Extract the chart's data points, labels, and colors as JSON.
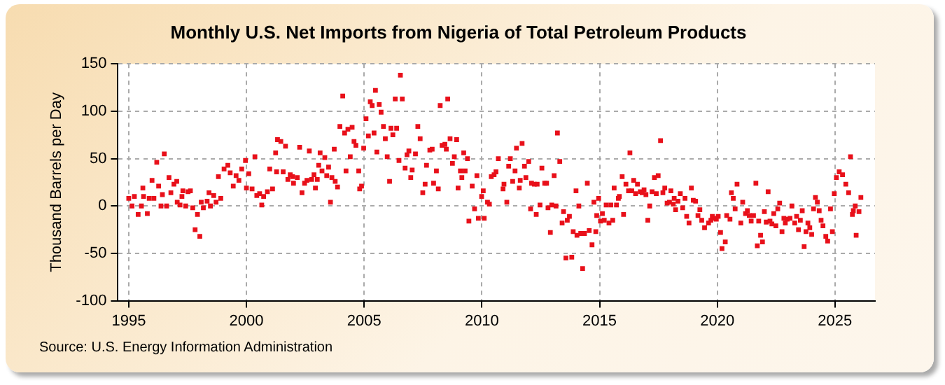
{
  "chart_data": {
    "type": "scatter",
    "title": "Monthly U.S. Net Imports from Nigeria of Total Petroleum Products",
    "ylabel": "Thousand Barrels per Day",
    "annotations": [
      "Source: U.S. Energy Information Administration"
    ],
    "xlim": [
      1994.54,
      2026.7
    ],
    "xticks": [
      1995,
      2000,
      2005,
      2010,
      2015,
      2020,
      2025
    ],
    "ylim": [
      -100,
      150
    ],
    "yticks": [
      -100,
      -50,
      0,
      50,
      100,
      150
    ],
    "grid": true,
    "marker": "square",
    "series": [
      {
        "color": "#e8101a",
        "x": [
          1995.0,
          1995.14,
          1995.24,
          1995.4,
          1995.54,
          1995.6,
          1995.63,
          1995.79,
          1995.87,
          1995.99,
          1996.07,
          1996.19,
          1996.27,
          1996.37,
          1996.43,
          1996.51,
          1996.61,
          1996.71,
          1996.79,
          1996.92,
          1997.04,
          1997.06,
          1997.18,
          1997.26,
          1997.3,
          1997.42,
          1997.52,
          1997.62,
          1997.72,
          1997.82,
          1997.92,
          1998.02,
          1998.08,
          1998.17,
          1998.33,
          1998.41,
          1998.47,
          1998.61,
          1998.71,
          1998.81,
          1998.91,
          1999.05,
          1999.21,
          1999.31,
          1999.44,
          1999.56,
          1999.68,
          1999.8,
          1999.96,
          2000.0,
          2000.1,
          2000.24,
          2000.36,
          2000.44,
          2000.56,
          2000.65,
          2000.73,
          2000.89,
          2000.99,
          2001.11,
          2001.24,
          2001.28,
          2001.32,
          2001.46,
          2001.56,
          2001.66,
          2001.76,
          2001.86,
          2001.96,
          2002.0,
          2002.16,
          2002.26,
          2002.36,
          2002.47,
          2002.57,
          2002.67,
          2002.77,
          2002.87,
          2002.93,
          2003.01,
          2003.07,
          2003.13,
          2003.21,
          2003.33,
          2003.41,
          2003.49,
          2003.57,
          2003.63,
          2003.73,
          2003.77,
          2003.87,
          2003.97,
          2004.09,
          2004.17,
          2004.23,
          2004.31,
          2004.41,
          2004.49,
          2004.57,
          2004.65,
          2004.77,
          2004.81,
          2004.89,
          2004.98,
          2005.08,
          2005.18,
          2005.26,
          2005.34,
          2005.42,
          2005.48,
          2005.54,
          2005.64,
          2005.72,
          2005.82,
          2005.9,
          2005.98,
          2006.08,
          2006.14,
          2006.22,
          2006.32,
          2006.38,
          2006.48,
          2006.54,
          2006.62,
          2006.74,
          2006.82,
          2006.9,
          2006.98,
          2007.04,
          2007.18,
          2007.28,
          2007.38,
          2007.49,
          2007.59,
          2007.65,
          2007.79,
          2007.89,
          2007.95,
          2008.07,
          2008.15,
          2008.23,
          2008.31,
          2008.43,
          2008.49,
          2008.55,
          2008.65,
          2008.75,
          2008.83,
          2008.93,
          2008.99,
          2009.09,
          2009.15,
          2009.23,
          2009.29,
          2009.39,
          2009.45,
          2009.59,
          2009.69,
          2009.79,
          2009.85,
          2009.99,
          2010.06,
          2010.1,
          2010.24,
          2010.32,
          2010.4,
          2010.52,
          2010.6,
          2010.7,
          2010.9,
          2010.94,
          2011.06,
          2011.14,
          2011.21,
          2011.31,
          2011.41,
          2011.47,
          2011.59,
          2011.63,
          2011.71,
          2011.81,
          2011.87,
          2011.99,
          2012.07,
          2012.11,
          2012.23,
          2012.31,
          2012.35,
          2012.47,
          2012.55,
          2012.67,
          2012.75,
          2012.81,
          2012.91,
          2012.97,
          2013.07,
          2013.15,
          2013.21,
          2013.31,
          2013.41,
          2013.47,
          2013.57,
          2013.63,
          2013.72,
          2013.82,
          2013.88,
          2014.0,
          2014.04,
          2014.12,
          2014.2,
          2014.28,
          2014.36,
          2014.48,
          2014.56,
          2014.68,
          2014.76,
          2014.84,
          2014.88,
          2014.96,
          2015.04,
          2015.12,
          2015.2,
          2015.28,
          2015.4,
          2015.48,
          2015.56,
          2015.62,
          2015.72,
          2015.8,
          2015.84,
          2015.96,
          2016.02,
          2016.12,
          2016.23,
          2016.29,
          2016.37,
          2016.45,
          2016.53,
          2016.61,
          2016.73,
          2016.81,
          2016.89,
          2016.97,
          2017.05,
          2017.13,
          2017.23,
          2017.33,
          2017.41,
          2017.49,
          2017.59,
          2017.69,
          2017.77,
          2017.87,
          2017.97,
          2018.03,
          2018.13,
          2018.17,
          2018.23,
          2018.33,
          2018.43,
          2018.53,
          2018.63,
          2018.7,
          2018.8,
          2018.9,
          2018.98,
          2019.08,
          2019.18,
          2019.26,
          2019.34,
          2019.46,
          2019.63,
          2019.73,
          2019.79,
          2019.87,
          2019.96,
          2020.04,
          2020.14,
          2020.2,
          2020.34,
          2020.4,
          2020.54,
          2020.6,
          2020.68,
          2020.76,
          2020.84,
          2021.0,
          2021.08,
          2021.2,
          2021.28,
          2021.36,
          2021.44,
          2021.54,
          2021.64,
          2021.7,
          2021.76,
          2021.84,
          2021.92,
          2022.0,
          2022.08,
          2022.16,
          2022.24,
          2022.32,
          2022.4,
          2022.49,
          2022.57,
          2022.65,
          2022.75,
          2022.83,
          2022.89,
          2022.97,
          2023.09,
          2023.17,
          2023.29,
          2023.37,
          2023.45,
          2023.53,
          2023.61,
          2023.69,
          2023.77,
          2023.85,
          2023.93,
          2024.01,
          2024.09,
          2024.17,
          2024.25,
          2024.33,
          2024.41,
          2024.49,
          2024.61,
          2024.69,
          2024.81,
          2024.89,
          2024.97,
          2025.06,
          2025.18,
          2025.32,
          2025.46,
          2025.58,
          2025.66,
          2025.74,
          2025.78,
          2025.86,
          2025.9,
          2026.02,
          2026.1
        ],
        "values": [
          8,
          0,
          10,
          -9,
          0,
          19,
          10,
          -8,
          8,
          27,
          8,
          46,
          21,
          0,
          12,
          55,
          0,
          30,
          14,
          23,
          26,
          4,
          1,
          10,
          16,
          0,
          15,
          16,
          -2,
          -25,
          -9,
          -32,
          4,
          -2,
          5,
          14,
          0,
          11,
          4,
          31,
          8,
          39,
          43,
          35,
          21,
          32,
          27,
          39,
          48,
          19,
          34,
          18,
          52,
          11,
          13,
          1,
          10,
          15,
          39,
          18,
          56,
          36,
          70,
          68,
          36,
          63,
          28,
          33,
          31,
          24,
          30,
          62,
          14,
          24,
          27,
          58,
          28,
          33,
          19,
          28,
          43,
          56,
          37,
          51,
          32,
          41,
          4,
          30,
          60,
          26,
          20,
          84,
          116,
          77,
          37,
          81,
          52,
          83,
          68,
          64,
          37,
          18,
          21,
          61,
          92,
          74,
          110,
          106,
          77,
          122,
          57,
          107,
          99,
          84,
          71,
          52,
          26,
          82,
          75,
          113,
          82,
          48,
          138,
          113,
          40,
          54,
          58,
          30,
          38,
          55,
          84,
          71,
          14,
          23,
          43,
          59,
          60,
          24,
          37,
          18,
          106,
          64,
          65,
          60,
          113,
          71,
          45,
          52,
          70,
          19,
          37,
          30,
          56,
          37,
          50,
          -16,
          21,
          -3,
          32,
          -13,
          10,
          16,
          -13,
          4,
          2,
          31,
          33,
          36,
          50,
          18,
          23,
          4,
          42,
          50,
          26,
          37,
          61,
          19,
          27,
          66,
          42,
          30,
          47,
          -3,
          24,
          23,
          -9,
          23,
          1,
          40,
          24,
          24,
          -2,
          -28,
          1,
          32,
          0,
          77,
          47,
          -18,
          -6,
          -55,
          -15,
          -11,
          -54,
          -27,
          16,
          -31,
          0,
          -29,
          -66,
          -29,
          24,
          -26,
          -41,
          4,
          -27,
          -10,
          8,
          -16,
          -8,
          -15,
          1,
          -18,
          1,
          -15,
          19,
          1,
          8,
          10,
          31,
          -9,
          23,
          16,
          56,
          16,
          27,
          13,
          23,
          15,
          14,
          17,
          12,
          -15,
          0,
          15,
          30,
          13,
          32,
          69,
          14,
          19,
          3,
          4,
          16,
          2,
          8,
          -4,
          5,
          13,
          -2,
          8,
          -11,
          -18,
          19,
          6,
          5,
          -10,
          -4,
          -15,
          -23,
          -18,
          -15,
          -11,
          -13,
          -14,
          -11,
          -28,
          -45,
          -38,
          -10,
          -14,
          14,
          8,
          -3,
          23,
          -18,
          4,
          -8,
          -5,
          -10,
          -16,
          -10,
          24,
          -42,
          -16,
          -31,
          -38,
          -6,
          -17,
          15,
          -16,
          -19,
          -8,
          -21,
          -3,
          3,
          -27,
          -13,
          -18,
          -14,
          -13,
          0,
          -18,
          -11,
          -25,
          -15,
          -5,
          -43,
          -27,
          -18,
          -23,
          -30,
          -3,
          9,
          4,
          -5,
          -15,
          -21,
          -32,
          -37,
          -3,
          -27,
          13,
          30,
          36,
          33,
          23,
          14,
          52,
          -9,
          -5,
          0,
          -31,
          -6,
          9
        ]
      }
    ]
  }
}
